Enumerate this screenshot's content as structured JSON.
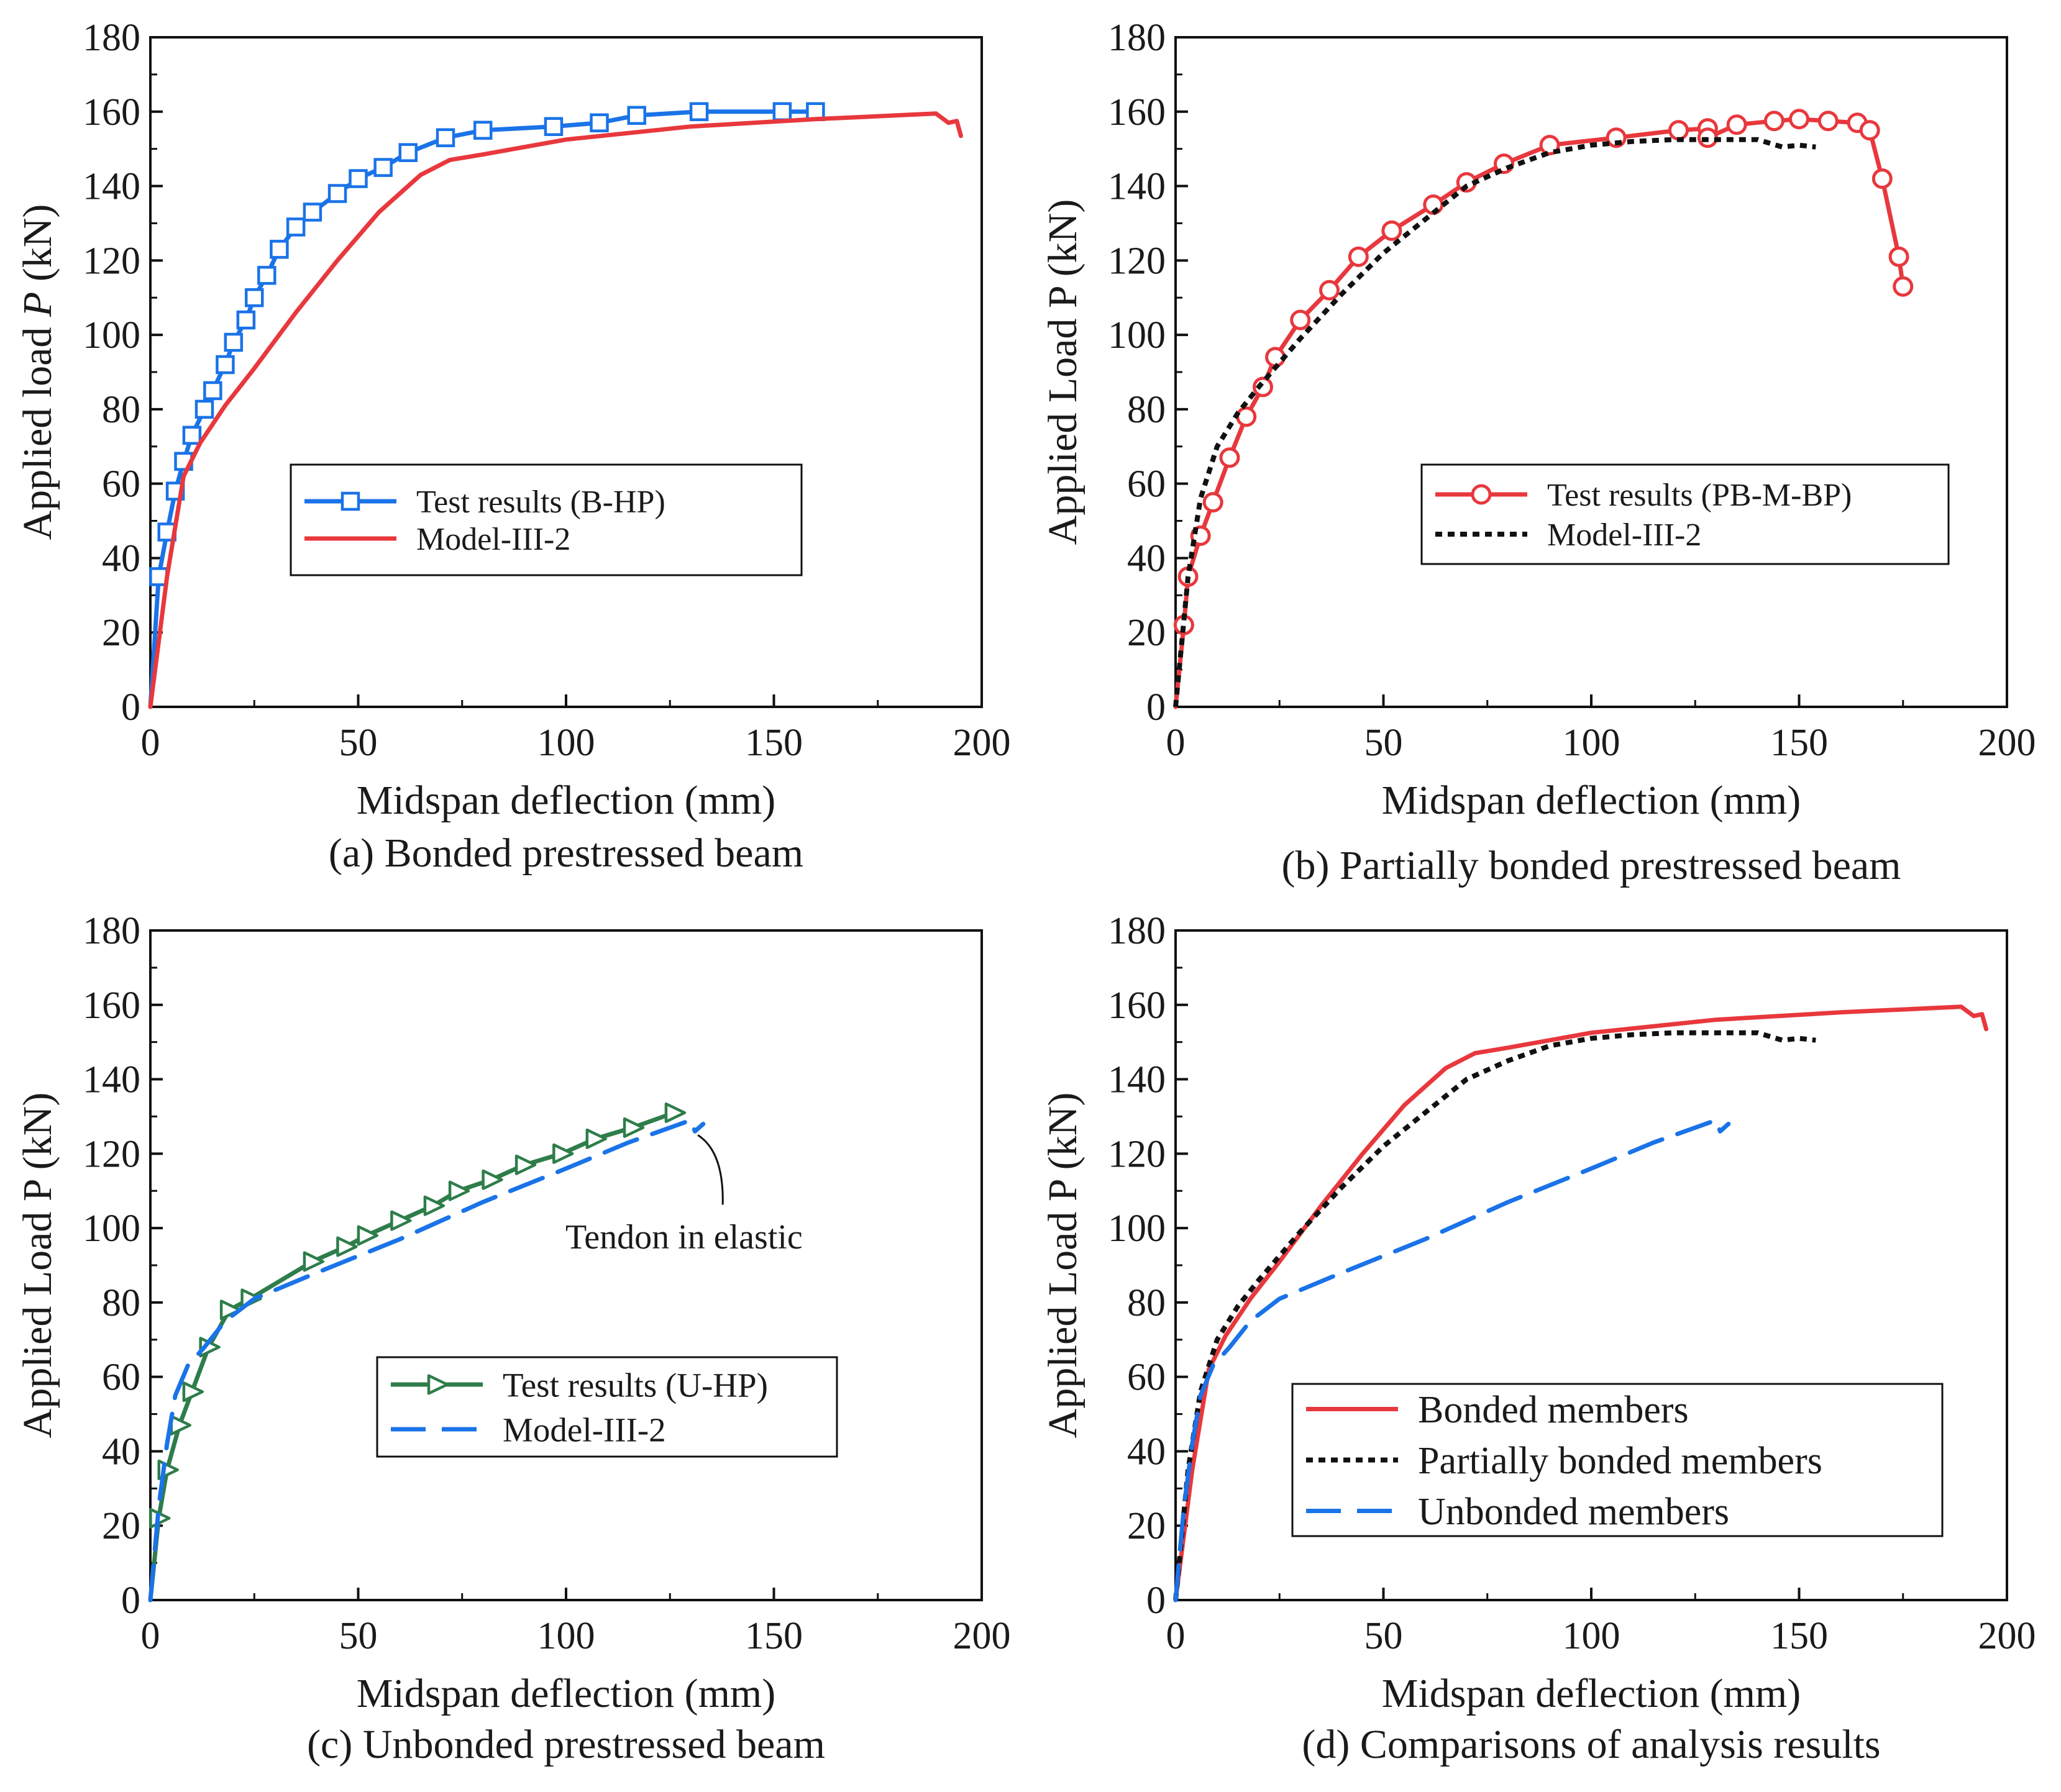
{
  "chart_data": [
    {
      "id": "a",
      "type": "line",
      "caption": "(a) Bonded prestressed beam",
      "xlabel": "Midspan deflection (mm)",
      "ylabel": "Applied load P (kN)",
      "ylabel_parts": [
        "Applied load ",
        "P",
        " (kN)"
      ],
      "xlim": [
        0,
        200
      ],
      "ylim": [
        0,
        180
      ],
      "xticks": [
        0,
        50,
        100,
        150,
        200
      ],
      "yticks": [
        0,
        20,
        40,
        60,
        80,
        100,
        120,
        140,
        160,
        180
      ],
      "legend_position": "center",
      "series": [
        {
          "name": "Test results (B-HP)",
          "color": "#1a73e8",
          "style": "solid-line-square-markers",
          "marker": "square",
          "x": [
            0,
            2,
            4,
            6,
            8,
            10,
            13,
            15,
            18,
            20,
            23,
            25,
            28,
            31,
            35,
            39,
            45,
            50,
            56,
            62,
            71,
            80,
            97,
            108,
            117,
            132,
            152,
            160
          ],
          "y": [
            0,
            35,
            47,
            58,
            66,
            73,
            80,
            85,
            92,
            98,
            104,
            110,
            116,
            123,
            129,
            133,
            138,
            142,
            145,
            149,
            153,
            155,
            156,
            157,
            159,
            160,
            160,
            160
          ]
        },
        {
          "name": "Model-III-2",
          "color": "#e8383d",
          "style": "solid",
          "marker": "none",
          "x": [
            0,
            4,
            8,
            12,
            18,
            25,
            35,
            45,
            55,
            65,
            72,
            80,
            100,
            130,
            160,
            189,
            192,
            194,
            195
          ],
          "y": [
            0,
            35,
            62,
            71,
            81,
            91,
            106,
            120,
            133,
            143,
            147,
            148.5,
            152.5,
            156,
            158,
            159.5,
            157,
            157.5,
            153.5
          ]
        }
      ]
    },
    {
      "id": "b",
      "type": "line",
      "caption": "(b) Partially bonded prestressed beam",
      "xlabel": "Midspan deflection (mm)",
      "ylabel": "Applied Load P (kN)",
      "ylabel_parts": [
        "Applied Load P (kN)"
      ],
      "xlim": [
        0,
        200
      ],
      "ylim": [
        0,
        180
      ],
      "xticks": [
        0,
        50,
        100,
        150,
        200
      ],
      "yticks": [
        0,
        20,
        40,
        60,
        80,
        100,
        120,
        140,
        160,
        180
      ],
      "legend_position": "center-right",
      "series": [
        {
          "name": "Test results (PB-M-BP)",
          "color": "#e8383d",
          "style": "solid-line-circle-markers",
          "marker": "circle",
          "x": [
            0,
            2,
            3,
            6,
            9,
            13,
            17,
            21,
            24,
            30,
            37,
            44,
            52,
            62,
            70,
            79,
            90,
            106,
            121,
            128,
            128,
            135,
            144,
            150,
            157,
            164,
            167,
            170,
            174,
            175
          ],
          "y": [
            0,
            22,
            35,
            46,
            55,
            67,
            78,
            86,
            94,
            104,
            112,
            121,
            128,
            135,
            141,
            146,
            151,
            153,
            155,
            155.5,
            153,
            156.5,
            157.5,
            158,
            157.5,
            157,
            155,
            142,
            121,
            113
          ]
        },
        {
          "name": "Model-III-2",
          "color": "#111111",
          "style": "dotted",
          "marker": "none",
          "x": [
            0,
            3,
            6,
            10,
            15,
            20,
            30,
            40,
            50,
            60,
            70,
            80,
            90,
            100,
            110,
            120,
            130,
            140,
            146,
            150,
            154
          ],
          "y": [
            0,
            35,
            56,
            70,
            79,
            86,
            99,
            111,
            122,
            131,
            140,
            145,
            149,
            151,
            152,
            152.5,
            152.5,
            152.5,
            150.5,
            151,
            150.5
          ]
        }
      ]
    },
    {
      "id": "c",
      "type": "line",
      "caption": "(c) Unbonded prestressed beam",
      "xlabel": "Midspan deflection (mm)",
      "ylabel": "Applied Load P (kN)",
      "ylabel_parts": [
        "Applied Load P (kN)"
      ],
      "xlim": [
        0,
        200
      ],
      "ylim": [
        0,
        180
      ],
      "xticks": [
        0,
        50,
        100,
        150,
        200
      ],
      "yticks": [
        0,
        20,
        40,
        60,
        80,
        100,
        120,
        140,
        160,
        180
      ],
      "legend_position": "lower-center",
      "annotation": {
        "text": "Tendon in elastic",
        "x": 135,
        "y": 128
      },
      "series": [
        {
          "name": "Test results (U-HP)",
          "color": "#2e7d4a",
          "style": "solid-line-triangle-markers",
          "marker": "triangle-right",
          "x": [
            0,
            2,
            4,
            7,
            10,
            14,
            19,
            24,
            39,
            47,
            52,
            60,
            68,
            74,
            82,
            90,
            99,
            107,
            116,
            126
          ],
          "y": [
            0,
            22,
            35,
            47,
            56,
            68,
            78,
            81,
            91,
            95,
            98,
            102,
            106,
            110,
            113,
            117,
            120,
            124,
            127,
            131
          ]
        },
        {
          "name": "Model-III-2",
          "color": "#1a73e8",
          "style": "dashed",
          "marker": "none",
          "x": [
            0,
            2,
            4,
            6,
            9,
            13,
            18,
            25,
            40,
            60,
            80,
            100,
            115,
            125,
            130,
            131,
            133
          ],
          "y": [
            0,
            25,
            42,
            55,
            63,
            68,
            75,
            81,
            88,
            97,
            107,
            116,
            123,
            127,
            129,
            126,
            128
          ]
        }
      ]
    },
    {
      "id": "d",
      "type": "line",
      "caption": "(d) Comparisons of analysis results",
      "xlabel": "Midspan deflection (mm)",
      "ylabel": "Applied Load P (kN)",
      "ylabel_parts": [
        "Applied Load P (kN)"
      ],
      "xlim": [
        0,
        200
      ],
      "ylim": [
        0,
        180
      ],
      "xticks": [
        0,
        50,
        100,
        150,
        200
      ],
      "yticks": [
        0,
        20,
        40,
        60,
        80,
        100,
        120,
        140,
        160,
        180
      ],
      "legend_position": "lower-right",
      "series": [
        {
          "name": "Bonded members",
          "color": "#e8383d",
          "style": "solid",
          "marker": "none",
          "x": [
            0,
            4,
            8,
            12,
            18,
            25,
            35,
            45,
            55,
            65,
            72,
            80,
            100,
            130,
            160,
            189,
            192,
            194,
            195
          ],
          "y": [
            0,
            35,
            62,
            71,
            81,
            91,
            106,
            120,
            133,
            143,
            147,
            148.5,
            152.5,
            156,
            158,
            159.5,
            157,
            157.5,
            153.5
          ]
        },
        {
          "name": "Partially bonded members",
          "color": "#111111",
          "style": "dotted",
          "marker": "none",
          "x": [
            0,
            3,
            6,
            10,
            15,
            20,
            30,
            40,
            50,
            60,
            70,
            80,
            90,
            100,
            110,
            120,
            130,
            140,
            146,
            150,
            154
          ],
          "y": [
            0,
            35,
            56,
            70,
            79,
            86,
            99,
            111,
            122,
            131,
            140,
            145,
            149,
            151,
            152,
            152.5,
            152.5,
            152.5,
            150.5,
            151,
            150.5
          ]
        },
        {
          "name": "Unbonded members",
          "color": "#1a73e8",
          "style": "dashed",
          "marker": "none",
          "x": [
            0,
            2,
            4,
            6,
            9,
            13,
            18,
            25,
            40,
            60,
            80,
            100,
            115,
            125,
            130,
            131,
            133
          ],
          "y": [
            0,
            25,
            42,
            55,
            63,
            68,
            75,
            81,
            88,
            97,
            107,
            116,
            123,
            127,
            129,
            126,
            128
          ]
        }
      ]
    }
  ]
}
